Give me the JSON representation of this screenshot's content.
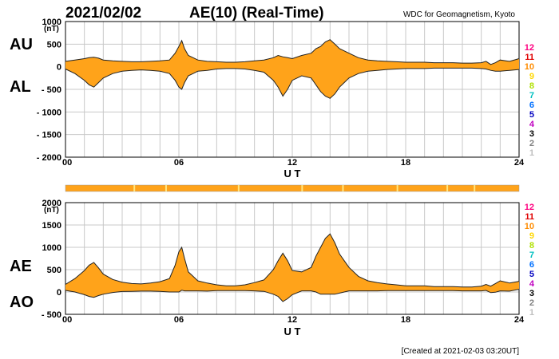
{
  "header": {
    "date": "2021/02/02",
    "title": "AE(10) (Real-Time)",
    "org": "WDC for Geomagnetism, Kyoto"
  },
  "footer": "[Created at 2021-02-03 03:20UT]",
  "legend": {
    "labels": [
      "12",
      "11",
      "10",
      "9",
      "8",
      "7",
      "6",
      "5",
      "4",
      "3",
      "2",
      "1"
    ],
    "colors": [
      "#ff0080",
      "#e00000",
      "#ff8c00",
      "#ffd700",
      "#b0e000",
      "#00c0c0",
      "#0070ff",
      "#0000c0",
      "#c000c0",
      "#000000",
      "#808080",
      "#c0c0c0"
    ]
  },
  "colors": {
    "fill": "#ffa31a",
    "line": "#222222",
    "grid": "#c8c8c8",
    "bar": "#ffa31a",
    "bar_highlight": "#ffe680"
  },
  "chart_data": [
    {
      "type": "area",
      "name": "AU/AL",
      "left_labels": [
        "AU",
        "AL"
      ],
      "ylabel": "(nT)",
      "xlabel": "U T",
      "xlim": [
        0,
        24
      ],
      "ylim": [
        -2000,
        1000
      ],
      "x_ticks": [
        "00",
        "06",
        "12",
        "18",
        "24"
      ],
      "y_ticks": [
        "1000",
        "500",
        "0",
        "- 500",
        "- 1000",
        "- 1500",
        "- 2000"
      ],
      "x": [
        0,
        0.5,
        1,
        1.25,
        1.5,
        1.75,
        2,
        2.5,
        3,
        3.5,
        4,
        4.5,
        5,
        5.5,
        5.8,
        6,
        6.15,
        6.3,
        6.5,
        6.75,
        7,
        7.5,
        8,
        8.5,
        9,
        9.5,
        10,
        10.5,
        11,
        11.25,
        11.5,
        11.75,
        12,
        12.5,
        13,
        13.25,
        13.5,
        13.75,
        14,
        14.25,
        14.5,
        14.75,
        15,
        15.5,
        16,
        16.5,
        17,
        17.5,
        18,
        18.5,
        19,
        19.5,
        20,
        20.5,
        21,
        21.5,
        22,
        22.25,
        22.5,
        22.75,
        23,
        23.5,
        24
      ],
      "series": [
        {
          "name": "AU",
          "values": [
            120,
            150,
            180,
            200,
            210,
            190,
            150,
            130,
            120,
            110,
            110,
            120,
            130,
            150,
            300,
            450,
            580,
            400,
            250,
            200,
            150,
            120,
            110,
            100,
            100,
            110,
            130,
            150,
            200,
            250,
            220,
            200,
            180,
            250,
            300,
            400,
            450,
            550,
            600,
            500,
            400,
            350,
            300,
            200,
            150,
            130,
            120,
            110,
            100,
            100,
            100,
            90,
            90,
            90,
            80,
            80,
            90,
            120,
            50,
            90,
            150,
            120,
            180
          ]
        },
        {
          "name": "AL",
          "values": [
            -50,
            -150,
            -300,
            -400,
            -450,
            -350,
            -250,
            -150,
            -100,
            -80,
            -70,
            -80,
            -100,
            -150,
            -300,
            -450,
            -500,
            -350,
            -200,
            -150,
            -100,
            -80,
            -50,
            -40,
            -40,
            -50,
            -80,
            -120,
            -300,
            -450,
            -650,
            -500,
            -300,
            -200,
            -250,
            -400,
            -550,
            -650,
            -700,
            -600,
            -450,
            -350,
            -250,
            -150,
            -100,
            -80,
            -60,
            -50,
            -40,
            -40,
            -40,
            -30,
            -30,
            -30,
            -30,
            -30,
            -40,
            -50,
            -80,
            -100,
            -100,
            -80,
            -60
          ]
        }
      ]
    },
    {
      "type": "area",
      "name": "AE/AO",
      "left_labels": [
        "AE",
        "AO"
      ],
      "ylabel": "(nT)",
      "xlabel": "U T",
      "xlim": [
        0,
        24
      ],
      "ylim": [
        -500,
        2000
      ],
      "x_ticks": [
        "00",
        "06",
        "12",
        "18",
        "24"
      ],
      "y_ticks": [
        "2000",
        "1500",
        "1000",
        "500",
        "0",
        "- 500"
      ],
      "x": [
        0,
        0.5,
        1,
        1.25,
        1.5,
        1.75,
        2,
        2.5,
        3,
        3.5,
        4,
        4.5,
        5,
        5.5,
        5.8,
        6,
        6.15,
        6.3,
        6.5,
        6.75,
        7,
        7.5,
        8,
        8.5,
        9,
        9.5,
        10,
        10.5,
        11,
        11.25,
        11.5,
        11.75,
        12,
        12.5,
        13,
        13.25,
        13.5,
        13.75,
        14,
        14.25,
        14.5,
        14.75,
        15,
        15.5,
        16,
        16.5,
        17,
        17.5,
        18,
        18.5,
        19,
        19.5,
        20,
        20.5,
        21,
        21.5,
        22,
        22.25,
        22.5,
        22.75,
        23,
        23.5,
        24
      ],
      "series": [
        {
          "name": "AE",
          "values": [
            170,
            300,
            480,
            600,
            660,
            540,
            400,
            280,
            220,
            190,
            180,
            200,
            230,
            300,
            600,
            900,
            1000,
            750,
            450,
            350,
            250,
            200,
            160,
            140,
            140,
            160,
            210,
            270,
            500,
            700,
            870,
            700,
            480,
            450,
            550,
            800,
            1000,
            1200,
            1300,
            1100,
            850,
            700,
            550,
            350,
            250,
            210,
            180,
            160,
            140,
            140,
            140,
            120,
            120,
            120,
            110,
            110,
            130,
            170,
            130,
            190,
            250,
            200,
            240
          ]
        },
        {
          "name": "AO",
          "values": [
            35,
            0,
            -60,
            -100,
            -120,
            -80,
            -50,
            -10,
            10,
            15,
            20,
            20,
            15,
            0,
            0,
            0,
            40,
            25,
            25,
            25,
            25,
            20,
            30,
            30,
            30,
            30,
            25,
            15,
            -50,
            -100,
            -215,
            -150,
            -60,
            25,
            25,
            0,
            -50,
            -50,
            -50,
            -50,
            -25,
            0,
            25,
            25,
            25,
            25,
            30,
            30,
            30,
            30,
            30,
            30,
            30,
            30,
            25,
            25,
            25,
            35,
            -15,
            -5,
            25,
            20,
            60
          ]
        }
      ]
    }
  ]
}
